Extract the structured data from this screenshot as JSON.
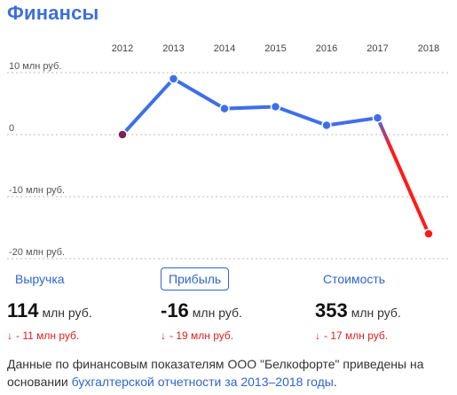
{
  "section_title": "Финансы",
  "chart_data": {
    "type": "line",
    "x": [
      "2012",
      "2013",
      "2014",
      "2015",
      "2016",
      "2017",
      "2018"
    ],
    "values": [
      0,
      9,
      4.2,
      4.5,
      1.5,
      2.7,
      -16
    ],
    "y_ticks": [
      {
        "value": 10,
        "label": "10 млн руб."
      },
      {
        "value": 0,
        "label": "0"
      },
      {
        "value": -10,
        "label": "-10 млн руб."
      },
      {
        "value": -20,
        "label": "-20 млн руб."
      }
    ],
    "ylim": [
      -20,
      10
    ],
    "colors": {
      "line": "#3f6fe8",
      "drop": "#ff1a1a",
      "start_point": "#7a1f5a",
      "end_point": "#ff1a1a",
      "grid": "#bbbbbb"
    }
  },
  "metrics": [
    {
      "label": "Выручка",
      "value": "114",
      "unit": "млн руб.",
      "delta_arrow": "↓",
      "delta": "- 11 млн руб."
    },
    {
      "label": "Прибыль",
      "value": "-16",
      "unit": "млн руб.",
      "delta_arrow": "↓",
      "delta": "- 19 млн руб."
    },
    {
      "label": "Стоимость",
      "value": "353",
      "unit": "млн руб.",
      "delta_arrow": "↓",
      "delta": "- 17 млн руб."
    }
  ],
  "active_metric": "Прибыль",
  "note": {
    "text_before": "Данные по финансовым показателям ООО \"Белкофорте\" приведены на основании ",
    "link": "бухгалтерской отчетности за 2013–2018 годы",
    "text_after": "."
  }
}
